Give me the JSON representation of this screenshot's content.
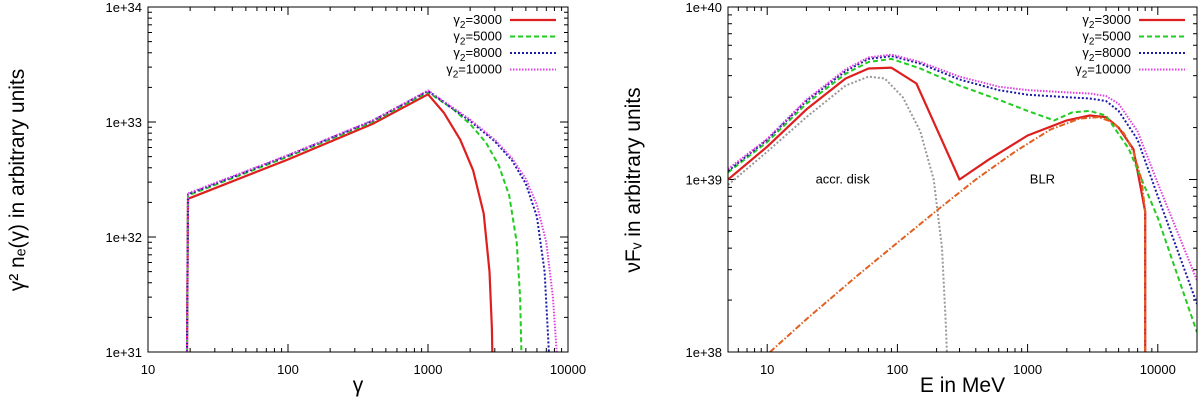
{
  "chart_data": [
    {
      "type": "line",
      "xscale": "log",
      "yscale": "log",
      "xlim": [
        10,
        10000
      ],
      "ylim": [
        1e+31,
        1e+34
      ],
      "xticks": [
        10,
        100,
        1000,
        10000
      ],
      "xtick_labels": [
        "10",
        "100",
        "1000",
        "10000"
      ],
      "yticks": [
        1e+31,
        1e+32,
        1e+33,
        1e+34
      ],
      "ytick_labels": [
        "1e+31",
        "1e+32",
        "1e+33",
        "1e+34"
      ],
      "xlabel": "γ",
      "ylabel": "γ² nₑ(γ) in arbitrary units",
      "legend_position": "top-right",
      "series": [
        {
          "name": "γ2=3000",
          "legend_main": "γ",
          "legend_sub": "2",
          "legend_tail": "=3000",
          "color": "#dd1f1f",
          "dash": "solid",
          "x": [
            19,
            19.3,
            100,
            400,
            1000,
            1300,
            1700,
            2100,
            2500,
            2750,
            2860,
            2880
          ],
          "y": [
            1e+31,
            2.15e+32,
            4.72e+32,
            9.6e+32,
            1.74e+33,
            1.2e+33,
            7e+32,
            3.8e+32,
            1.6e+32,
            5e+31,
            1.6e+31,
            1e+31
          ]
        },
        {
          "name": "γ2=5000",
          "legend_main": "γ",
          "legend_sub": "2",
          "legend_tail": "=5000",
          "color": "#22cc22",
          "dash": "dashed",
          "x": [
            19,
            19.3,
            100,
            400,
            1000,
            1500,
            2000,
            2600,
            3200,
            3800,
            4300,
            4550,
            4650
          ],
          "y": [
            1e+31,
            2.3e+32,
            5e+32,
            1e+33,
            1.82e+33,
            1.3e+33,
            9.6e+32,
            6.6e+32,
            4.2e+32,
            2.3e+32,
            9e+31,
            3e+31,
            1e+31
          ]
        },
        {
          "name": "γ2=8000",
          "legend_main": "γ",
          "legend_sub": "2",
          "legend_tail": "=8000",
          "color": "#1a1aa6",
          "dash": "dotted",
          "x": [
            19,
            19.3,
            100,
            400,
            1000,
            2000,
            3000,
            4000,
            5000,
            6000,
            6800,
            7300
          ],
          "y": [
            1e+31,
            2.35e+32,
            5.1e+32,
            1.02e+33,
            1.86e+33,
            1.02e+33,
            6.8e+32,
            4.6e+32,
            2.9e+32,
            1.5e+32,
            5e+31,
            1e+31
          ]
        },
        {
          "name": "γ2=10000",
          "legend_main": "γ",
          "legend_sub": "2",
          "legend_tail": "=10000",
          "color": "#e040e0",
          "dash": "fine-dotted",
          "x": [
            19,
            19.3,
            100,
            400,
            1000,
            2000,
            3000,
            4000,
            5000,
            6000,
            7000,
            7800,
            8300
          ],
          "y": [
            1e+31,
            2.4e+32,
            5.15e+32,
            1.03e+33,
            1.88e+33,
            1.05e+33,
            7e+32,
            4.8e+32,
            3.2e+32,
            1.9e+32,
            9e+31,
            3e+31,
            1e+31
          ]
        }
      ]
    },
    {
      "type": "line",
      "xscale": "log",
      "yscale": "log",
      "xlim": [
        5,
        20000
      ],
      "ylim": [
        1e+38,
        1e+40
      ],
      "xticks": [
        10,
        100,
        1000,
        10000
      ],
      "xtick_labels": [
        "10",
        "100",
        "1000",
        "10000"
      ],
      "yticks": [
        1e+38,
        1e+39,
        1e+40
      ],
      "ytick_labels": [
        "1e+38",
        "1e+39",
        "1e+40"
      ],
      "xlabel": "E in MeV",
      "ylabel": "νFᵥ in arbitrary units",
      "legend_position": "top-right",
      "annotations": [
        {
          "text": "accr. disk",
          "x": 38,
          "y": 9.5e+38
        },
        {
          "text": "BLR",
          "x": 1300,
          "y": 9.5e+38
        }
      ],
      "series": [
        {
          "name": "γ2=3000",
          "legend_main": "γ",
          "legend_sub": "2",
          "legend_tail": "=3000",
          "color": "#dd1f1f",
          "dash": "solid",
          "x": [
            5,
            10,
            20,
            40,
            60,
            90,
            140,
            300,
            500,
            1000,
            2000,
            3000,
            4000,
            5000,
            6500,
            8000,
            8001
          ],
          "y": [
            1e+39,
            1.55e+39,
            2.55e+39,
            3.85e+39,
            4.4e+39,
            4.45e+39,
            3.6e+39,
            1e+39,
            1.3e+39,
            1.8e+39,
            2.2e+39,
            2.35e+39,
            2.3e+39,
            2e+39,
            1.5e+39,
            6.5e+38,
            1e+38
          ]
        },
        {
          "name": "γ2=5000",
          "legend_main": "γ",
          "legend_sub": "2",
          "legend_tail": "=5000",
          "color": "#22cc22",
          "dash": "dashed",
          "x": [
            5,
            10,
            20,
            40,
            60,
            90,
            150,
            300,
            600,
            1000,
            1600,
            2200,
            3000,
            4000,
            6000,
            10000,
            20000
          ],
          "y": [
            1.1e+39,
            1.65e+39,
            2.75e+39,
            4.1e+39,
            4.8e+39,
            5e+39,
            4.4e+39,
            3.5e+39,
            2.9e+39,
            2.5e+39,
            2.2e+39,
            2.45e+39,
            2.5e+39,
            2.35e+39,
            1.5e+39,
            6e+38,
            1.3e+38
          ]
        },
        {
          "name": "γ2=8000",
          "legend_main": "γ",
          "legend_sub": "2",
          "legend_tail": "=8000",
          "color": "#1a1aa6",
          "dash": "dotted",
          "x": [
            5,
            10,
            20,
            40,
            60,
            90,
            150,
            300,
            600,
            1000,
            2000,
            3000,
            4000,
            5000,
            7000,
            10000,
            20000
          ],
          "y": [
            1.12e+39,
            1.7e+39,
            2.85e+39,
            4.25e+39,
            5e+39,
            5.2e+39,
            4.7e+39,
            3.8e+39,
            3.3e+39,
            3.1e+39,
            3e+39,
            2.95e+39,
            2.85e+39,
            2.5e+39,
            1.7e+39,
            8e+38,
            1.9e+38
          ]
        },
        {
          "name": "γ2=10000",
          "legend_main": "γ",
          "legend_sub": "2",
          "legend_tail": "=10000",
          "color": "#e040e0",
          "dash": "fine-dotted",
          "x": [
            5,
            10,
            20,
            40,
            60,
            90,
            150,
            300,
            600,
            1000,
            2000,
            3000,
            4000,
            5000,
            7000,
            10000,
            20000
          ],
          "y": [
            1.15e+39,
            1.72e+39,
            2.9e+39,
            4.35e+39,
            5.1e+39,
            5.3e+39,
            4.8e+39,
            3.95e+39,
            3.45e+39,
            3.3e+39,
            3.2e+39,
            3.15e+39,
            3.05e+39,
            2.75e+39,
            1.9e+39,
            9.5e+38,
            2.6e+38
          ]
        },
        {
          "name": "accr. disk",
          "color": "#999999",
          "dash": "dotted",
          "in_legend": false,
          "x": [
            5,
            10,
            20,
            40,
            60,
            80,
            110,
            150,
            190,
            220,
            235,
            240
          ],
          "y": [
            9.3e+38,
            1.45e+39,
            2.3e+39,
            3.5e+39,
            3.95e+39,
            3.85e+39,
            3e+39,
            1.9e+39,
            1e+39,
            4e+38,
            1.5e+38,
            1e+38
          ]
        },
        {
          "name": "BLR",
          "color": "#e06020",
          "dash": "dash-dot",
          "in_legend": false,
          "x": [
            10.5,
            20,
            50,
            100,
            200,
            400,
            800,
            1500,
            2500,
            3500,
            4500,
            5500,
            6500,
            7500,
            8000,
            8001
          ],
          "y": [
            1e+38,
            1.55e+38,
            2.8e+38,
            4.3e+38,
            6.6e+38,
            1e+39,
            1.45e+39,
            1.95e+39,
            2.25e+39,
            2.3e+39,
            2.15e+39,
            1.85e+39,
            1.45e+39,
            1e+39,
            6.5e+38,
            1e+38
          ]
        }
      ]
    }
  ]
}
